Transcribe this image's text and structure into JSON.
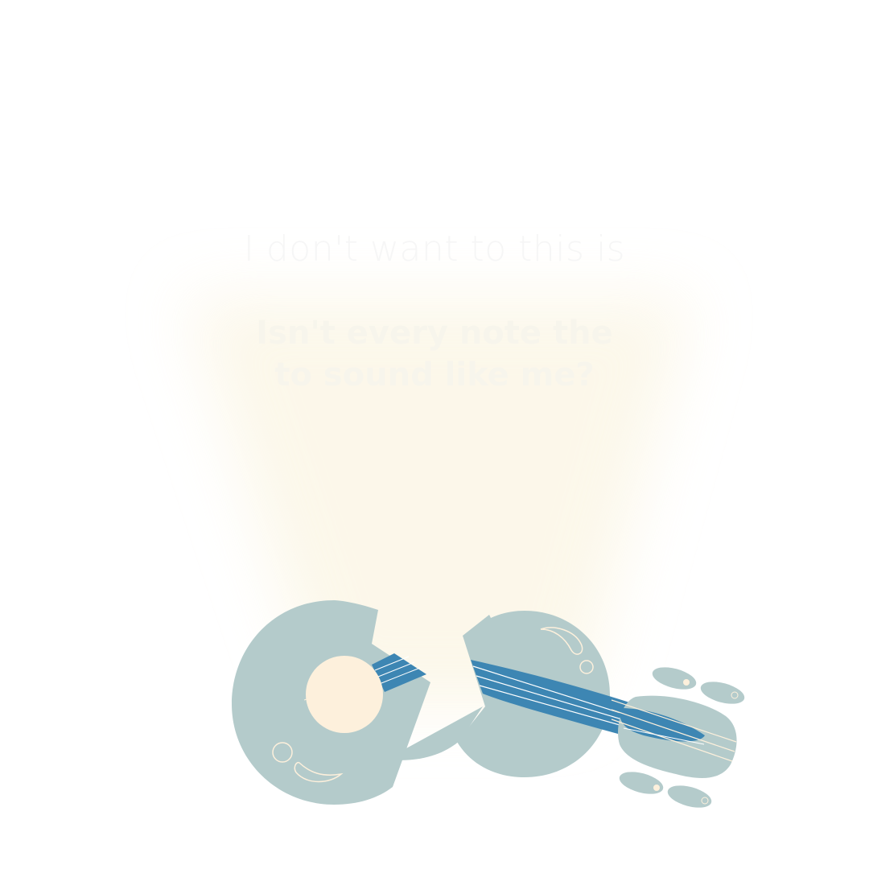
{
  "heading": {
    "line1": "I don't want to this is",
    "line2a": "Isn't every note the",
    "line2b": "to sound like me?"
  },
  "illustration": {
    "subject": "broken-guitar",
    "colors": {
      "body": "#b4cbcb",
      "neck": "#3d86b3",
      "accent": "#fdf0dc",
      "glow": "#fbf5e3"
    }
  }
}
